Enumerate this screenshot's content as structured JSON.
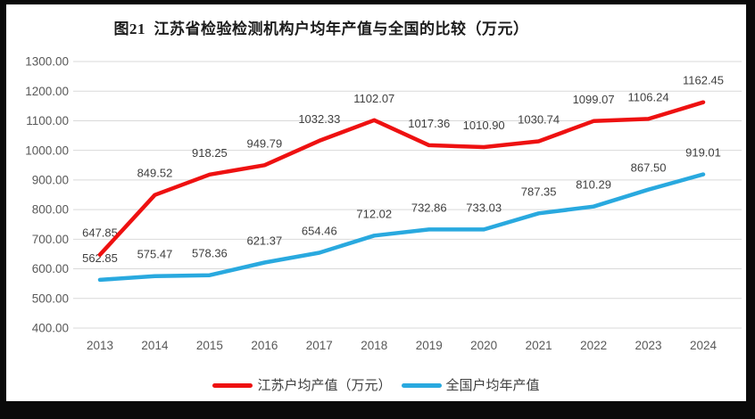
{
  "title": "图21  江苏省检验检测机构户均年产值与全国的比较（万元）",
  "chart_data": {
    "type": "line",
    "title": "图21  江苏省检验检测机构户均年产值与全国的比较（万元）",
    "categories": [
      "2013",
      "2014",
      "2015",
      "2016",
      "2017",
      "2018",
      "2019",
      "2020",
      "2021",
      "2022",
      "2023",
      "2024"
    ],
    "series": [
      {
        "name": "江苏户均产值（万元）",
        "color": "#ee1111",
        "values": [
          647.85,
          849.52,
          918.25,
          949.79,
          1032.33,
          1102.07,
          1017.36,
          1010.9,
          1030.74,
          1099.07,
          1106.24,
          1162.45
        ]
      },
      {
        "name": "全国户均年产值",
        "color": "#29a9df",
        "values": [
          562.85,
          575.47,
          578.36,
          621.37,
          654.46,
          712.02,
          732.86,
          733.03,
          787.35,
          810.29,
          867.5,
          919.01
        ]
      }
    ],
    "ylim": [
      400,
      1300
    ],
    "ytick_step": 100,
    "ytick_decimals": 2,
    "grid": true,
    "legend_position": "bottom",
    "data_labels": true
  },
  "style_colors": {
    "background_frame": "#0a0a0a",
    "chart_background": "#ffffff",
    "gridline": "#d9d9d9",
    "tick_label": "#595959",
    "data_label": "#3f3f3f",
    "title_text": "#1c1c1c"
  }
}
